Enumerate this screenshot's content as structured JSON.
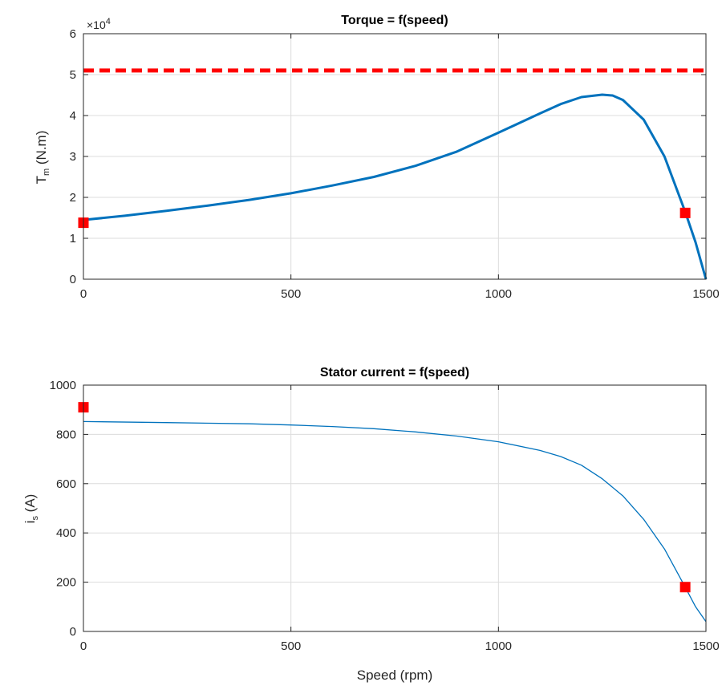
{
  "chart_data": [
    {
      "type": "line",
      "title": "Torque = f(speed)",
      "xlabel": "",
      "ylabel_main": "T",
      "ylabel_sub": "m",
      "ylabel_rest": " (N.m)",
      "y_exponent_prefix": "×10",
      "y_exponent_power": "4",
      "xlim": [
        0,
        1500
      ],
      "ylim": [
        0,
        60000
      ],
      "xticks": [
        0,
        500,
        1000,
        1500
      ],
      "xtick_labels": [
        "0",
        "500",
        "1000",
        "1500"
      ],
      "yticks": [
        0,
        10000,
        20000,
        30000,
        40000,
        50000,
        60000
      ],
      "ytick_labels": [
        "0",
        "1",
        "2",
        "3",
        "4",
        "5",
        "6"
      ],
      "grid": true,
      "colors": {
        "curve": "#0072BD",
        "reference": "#FF0000",
        "markers": "#FF0000"
      },
      "series": [
        {
          "style": "solid",
          "x": [
            0,
            100,
            200,
            300,
            400,
            500,
            600,
            700,
            800,
            900,
            1000,
            1100,
            1150,
            1200,
            1250,
            1275,
            1300,
            1350,
            1400,
            1450,
            1475,
            1500
          ],
          "y": [
            14500,
            15500,
            16700,
            18000,
            19400,
            21000,
            22900,
            25000,
            27700,
            31200,
            35800,
            40500,
            42800,
            44500,
            45100,
            44900,
            43800,
            39000,
            30000,
            16500,
            9000,
            0
          ]
        },
        {
          "style": "dashed",
          "x": [
            0,
            1500
          ],
          "y": [
            51000,
            51000
          ]
        },
        {
          "style": "markers",
          "x": [
            0,
            1450
          ],
          "y": [
            13800,
            16200
          ]
        }
      ]
    },
    {
      "type": "line",
      "title": "Stator current = f(speed)",
      "xlabel": "Speed (rpm)",
      "ylabel_main": "i",
      "ylabel_sub": "s",
      "ylabel_rest": " (A)",
      "xlim": [
        0,
        1500
      ],
      "ylim": [
        0,
        1000
      ],
      "xticks": [
        0,
        500,
        1000,
        1500
      ],
      "xtick_labels": [
        "0",
        "500",
        "1000",
        "1500"
      ],
      "yticks": [
        0,
        200,
        400,
        600,
        800,
        1000
      ],
      "ytick_labels": [
        "0",
        "200",
        "400",
        "600",
        "800",
        "1000"
      ],
      "grid": true,
      "colors": {
        "curve": "#0072BD",
        "markers": "#FF0000"
      },
      "series": [
        {
          "style": "solid",
          "x": [
            0,
            200,
            400,
            500,
            600,
            700,
            800,
            900,
            1000,
            1100,
            1150,
            1200,
            1250,
            1300,
            1350,
            1400,
            1450,
            1475,
            1500
          ],
          "y": [
            852,
            848,
            843,
            838,
            832,
            823,
            810,
            793,
            770,
            735,
            710,
            675,
            620,
            550,
            455,
            335,
            180,
            100,
            40
          ]
        },
        {
          "style": "markers",
          "x": [
            0,
            1450
          ],
          "y": [
            910,
            180
          ]
        }
      ]
    }
  ]
}
